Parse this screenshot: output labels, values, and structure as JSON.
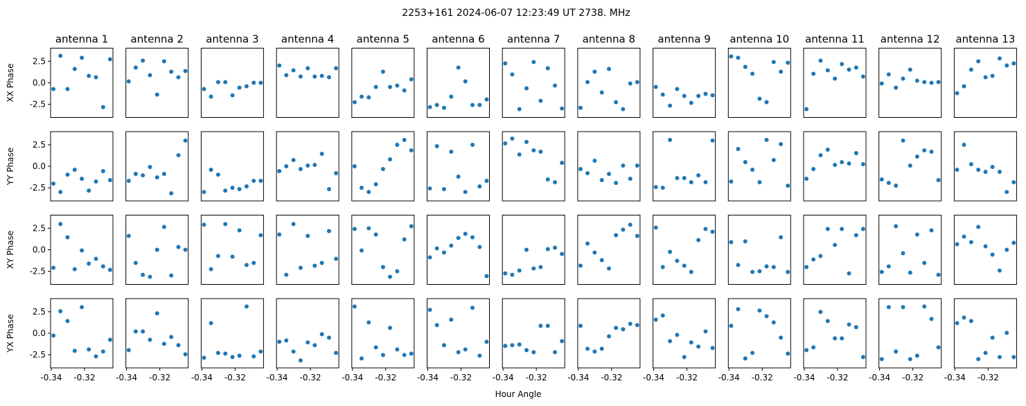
{
  "chart_data": {
    "type": "scatter",
    "title": "2253+161  2024-06-07 12:23:49 UT  2738. MHz",
    "xlabel": "Hour Angle",
    "row_labels": [
      "XX Phase",
      "YY Phase",
      "XY Phase",
      "YX Phase"
    ],
    "xlim": [
      -0.3404,
      -0.3029
    ],
    "ylim": [
      -4.02,
      4.02
    ],
    "xticks": [
      -0.34,
      -0.32
    ],
    "xtick_labels": [
      "-0.34",
      "-0.32"
    ],
    "yticks": [
      2.5,
      0,
      -2.5
    ],
    "ytick_labels": [
      "2.5",
      "0.0",
      "-2.5"
    ],
    "marker_color": "#1f77b4",
    "x": [
      -0.3387,
      -0.3345,
      -0.3302,
      -0.3259,
      -0.3216,
      -0.3174,
      -0.3131,
      -0.3088,
      -0.3046
    ],
    "antennas": [
      {
        "name": "antenna 1",
        "series": [
          [
            -0.72,
            3.14,
            -0.72,
            1.61,
            2.9,
            0.8,
            0.64,
            -2.82,
            2.73
          ],
          [
            -2.01,
            -2.98,
            -0.97,
            -0.4,
            -1.45,
            -2.82,
            -1.77,
            -0.56,
            -1.61
          ],
          [
            -2.09,
            2.98,
            1.45,
            -2.25,
            -0.08,
            -1.61,
            -1.05,
            -1.93,
            -2.33
          ],
          [
            -0.27,
            2.55,
            1.42,
            -2.04,
            3.03,
            -1.88,
            -2.68,
            -2.12,
            -0.75
          ]
        ]
      },
      {
        "name": "antenna 2",
        "series": [
          [
            0.16,
            1.77,
            2.57,
            0.88,
            -1.37,
            2.49,
            1.29,
            0.64,
            1.37
          ],
          [
            -1.69,
            -0.88,
            -1.05,
            -0.08,
            -1.29,
            -0.88,
            -3.14,
            1.29,
            2.98
          ],
          [
            1.61,
            -1.53,
            -2.9,
            -3.14,
            0.0,
            2.65,
            -2.98,
            0.32,
            0.0
          ],
          [
            -1.96,
            0.21,
            0.21,
            -0.75,
            2.31,
            -1.23,
            -0.43,
            -1.39,
            -2.44
          ]
        ]
      },
      {
        "name": "antenna 3",
        "series": [
          [
            -0.72,
            -1.61,
            0.08,
            0.08,
            -1.45,
            -0.56,
            -0.4,
            0.0,
            0.0
          ],
          [
            -2.98,
            -0.4,
            -0.97,
            -2.82,
            -2.49,
            -2.65,
            -2.33,
            -1.69,
            -1.69
          ],
          [
            2.9,
            -2.25,
            -0.72,
            2.98,
            -0.8,
            2.25,
            -1.77,
            -1.53,
            1.69
          ],
          [
            -2.84,
            1.18,
            -2.28,
            -2.36,
            -2.76,
            -2.6,
            3.11,
            -2.68,
            -2.12
          ]
        ]
      },
      {
        "name": "antenna 4",
        "series": [
          [
            2.01,
            0.88,
            1.45,
            0.72,
            1.69,
            0.72,
            0.8,
            0.64,
            1.69
          ],
          [
            -0.56,
            0.0,
            0.72,
            -0.32,
            0.08,
            0.16,
            1.45,
            -2.65,
            -0.8
          ],
          [
            1.77,
            -2.9,
            2.98,
            -2.09,
            1.61,
            -1.85,
            -1.53,
            2.17,
            -1.05
          ],
          [
            -0.99,
            -0.83,
            -2.12,
            -3.16,
            -1.07,
            -1.39,
            -0.11,
            -0.51,
            -2.28
          ]
        ]
      },
      {
        "name": "antenna 5",
        "series": [
          [
            -2.25,
            -1.61,
            -1.69,
            -0.48,
            1.29,
            -0.48,
            -0.32,
            -0.88,
            0.4
          ],
          [
            0.0,
            -2.49,
            -2.98,
            -2.09,
            -0.32,
            0.8,
            2.49,
            3.06,
            1.85
          ],
          [
            2.41,
            -0.08,
            2.49,
            1.77,
            -2.01,
            -3.14,
            -2.49,
            1.21,
            2.73
          ],
          [
            3.11,
            -2.92,
            1.26,
            -1.64,
            -2.52,
            0.62,
            -1.88,
            -2.52,
            -2.36
          ]
        ]
      },
      {
        "name": "antenna 6",
        "series": [
          [
            -2.82,
            -2.57,
            -2.9,
            -1.61,
            1.77,
            0.16,
            -2.57,
            -2.57,
            -1.93
          ],
          [
            -2.57,
            2.33,
            -2.65,
            1.69,
            -1.21,
            -2.98,
            2.49,
            -2.33,
            -1.69
          ],
          [
            -0.88,
            0.16,
            -0.32,
            0.48,
            1.37,
            1.85,
            1.45,
            0.32,
            -3.06
          ],
          [
            2.71,
            0.94,
            -1.39,
            1.58,
            -2.2,
            -1.88,
            2.95,
            -2.6,
            -0.99
          ]
        ]
      },
      {
        "name": "antenna 7",
        "series": [
          [
            2.25,
            0.97,
            -3.06,
            -0.64,
            2.41,
            -2.09,
            1.69,
            -0.32,
            -2.98
          ],
          [
            2.65,
            3.22,
            1.37,
            2.82,
            1.85,
            1.69,
            -1.53,
            -1.85,
            0.4
          ],
          [
            -2.74,
            -2.9,
            -2.41,
            0.0,
            -2.17,
            -2.01,
            0.08,
            0.24,
            -0.48
          ],
          [
            -1.47,
            -1.39,
            -1.31,
            -1.96,
            -2.2,
            0.86,
            0.86,
            -2.2,
            -0.91
          ]
        ]
      },
      {
        "name": "antenna 8",
        "series": [
          [
            -2.9,
            0.08,
            1.29,
            -1.13,
            1.61,
            -2.25,
            -3.06,
            -0.08,
            0.08
          ],
          [
            -0.32,
            -0.8,
            0.64,
            -1.61,
            -0.88,
            -1.93,
            0.08,
            -1.45,
            0.08
          ],
          [
            -1.85,
            0.72,
            -0.32,
            -1.21,
            -2.17,
            1.69,
            2.33,
            2.9,
            1.61
          ],
          [
            0.86,
            -1.8,
            -2.12,
            -1.8,
            -0.35,
            0.62,
            0.46,
            1.1,
            0.94
          ]
        ]
      },
      {
        "name": "antenna 9",
        "series": [
          [
            -0.48,
            -1.37,
            -2.65,
            -0.72,
            -1.53,
            -2.33,
            -1.53,
            -1.29,
            -1.45
          ],
          [
            -2.41,
            -2.49,
            3.06,
            -1.37,
            -1.37,
            -1.85,
            -1.05,
            -1.85,
            2.98
          ],
          [
            2.57,
            -2.01,
            -0.24,
            -1.29,
            -1.85,
            -2.57,
            1.13,
            2.41,
            2.09
          ],
          [
            1.58,
            2.06,
            -0.91,
            -0.19,
            -2.76,
            -1.07,
            -1.55,
            0.21,
            -1.72
          ]
        ]
      },
      {
        "name": "antenna 10",
        "series": [
          [
            3.06,
            2.9,
            1.85,
            1.05,
            -1.85,
            -2.25,
            2.41,
            1.29,
            2.33
          ],
          [
            -1.77,
            2.01,
            0.48,
            -0.4,
            -1.85,
            3.06,
            0.72,
            2.57,
            -2.25
          ],
          [
            0.88,
            -1.77,
            0.97,
            -2.57,
            -2.49,
            -1.93,
            -2.01,
            1.45,
            -2.57
          ],
          [
            0.86,
            2.79,
            -2.92,
            -2.28,
            2.63,
            1.98,
            1.26,
            -0.51,
            -2.36
          ]
        ]
      },
      {
        "name": "antenna 11",
        "series": [
          [
            -3.06,
            1.05,
            2.57,
            1.45,
            0.48,
            2.17,
            1.53,
            1.77,
            0.72
          ],
          [
            -1.45,
            -0.32,
            1.29,
            1.93,
            0.16,
            0.48,
            0.32,
            1.53,
            0.24
          ],
          [
            -2.01,
            -1.13,
            -0.72,
            2.41,
            0.56,
            2.41,
            -2.74,
            1.69,
            2.41
          ],
          [
            -1.96,
            -1.64,
            2.47,
            1.42,
            -0.59,
            -0.59,
            1.02,
            0.7,
            -2.76
          ]
        ]
      },
      {
        "name": "antenna 12",
        "series": [
          [
            -0.08,
            0.97,
            -0.56,
            0.48,
            1.53,
            0.24,
            0.08,
            0.0,
            0.08
          ],
          [
            -1.53,
            -1.93,
            -2.25,
            2.98,
            0.08,
            1.13,
            1.85,
            1.69,
            -1.61
          ],
          [
            -2.57,
            -1.93,
            2.73,
            -0.4,
            -2.65,
            1.77,
            -1.53,
            2.25,
            -2.9
          ],
          [
            -3.0,
            3.03,
            -2.12,
            3.03,
            -3.0,
            -2.6,
            3.11,
            1.66,
            -1.64
          ]
        ]
      },
      {
        "name": "antenna 13",
        "series": [
          [
            -1.21,
            -0.4,
            1.53,
            2.49,
            0.64,
            0.8,
            2.82,
            2.01,
            2.25
          ],
          [
            -0.4,
            2.49,
            0.24,
            -0.4,
            -0.64,
            -0.08,
            -0.64,
            -2.98,
            -1.85
          ],
          [
            0.64,
            1.53,
            0.88,
            2.65,
            0.4,
            -0.56,
            -2.41,
            0.0,
            0.8
          ],
          [
            1.18,
            1.82,
            1.42,
            -3.0,
            -2.28,
            -0.51,
            -2.76,
            0.05,
            -2.76
          ]
        ]
      }
    ]
  }
}
